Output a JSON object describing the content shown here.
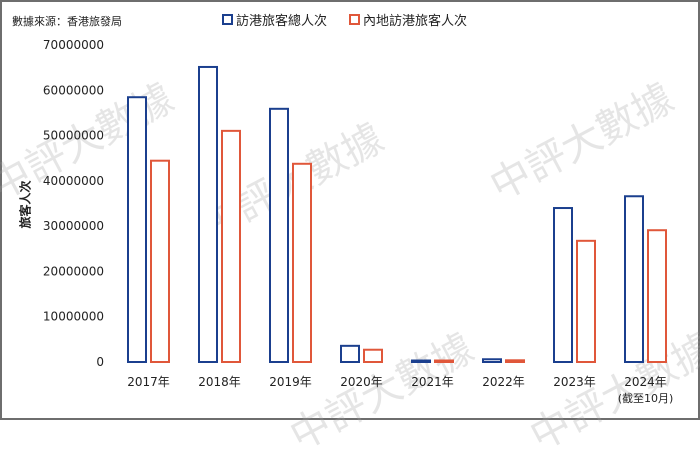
{
  "source": "數據來源：香港旅發局",
  "watermark": "中評大數據",
  "colors": {
    "series1": "#1b3f8e",
    "series2": "#e0573a"
  },
  "chart_data": {
    "type": "bar",
    "title": "",
    "xlabel": "",
    "ylabel": "旅客人次",
    "ylim": [
      0,
      70000000
    ],
    "yticks": [
      "0",
      "10000000",
      "20000000",
      "30000000",
      "40000000",
      "50000000",
      "60000000",
      "70000000"
    ],
    "grid": false,
    "legend_position": "top",
    "categories": [
      "2017年",
      "2018年",
      "2019年",
      "2020年",
      "2021年",
      "2022年",
      "2023年",
      "2024年"
    ],
    "category_notes": [
      "",
      "",
      "",
      "",
      "",
      "",
      "",
      "(截至10月)"
    ],
    "series": [
      {
        "name": "訪港旅客總人次",
        "values": [
          58470000,
          65150000,
          55910000,
          3570000,
          91000,
          605000,
          34000000,
          36600000
        ]
      },
      {
        "name": "內地訪港旅客人次",
        "values": [
          44450000,
          51040000,
          43770000,
          2710000,
          65000,
          379000,
          26760000,
          29100000
        ]
      }
    ]
  }
}
